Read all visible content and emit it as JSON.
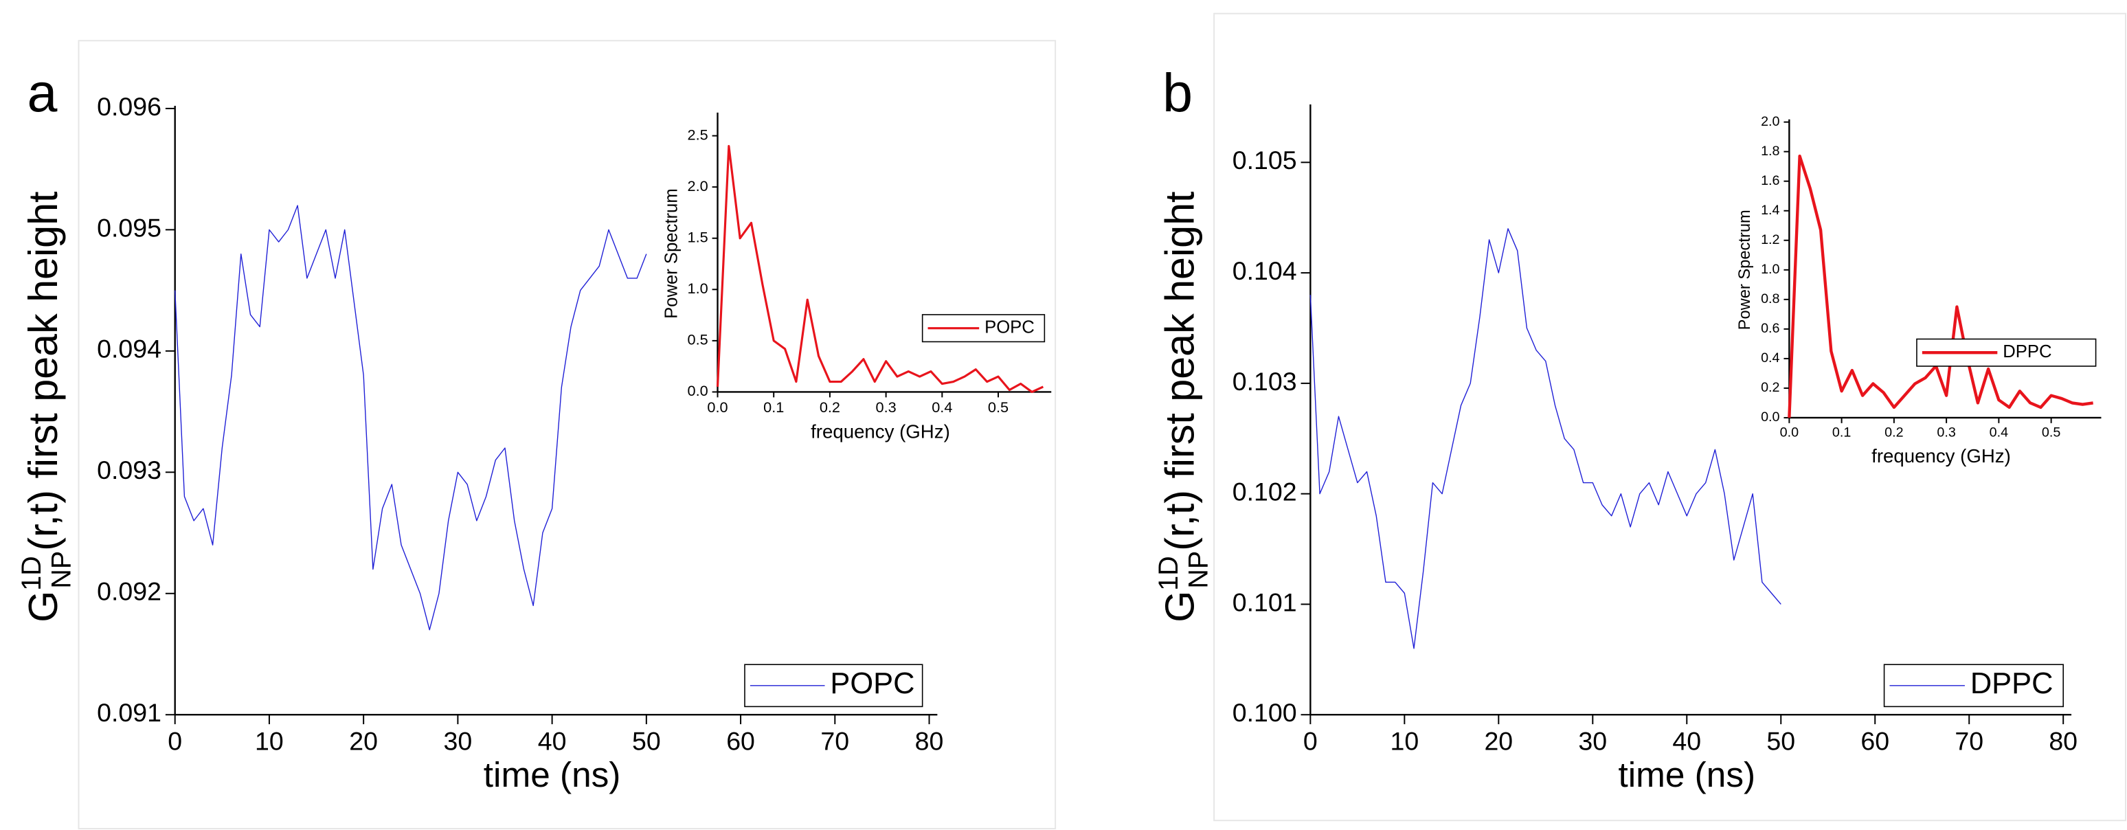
{
  "chart_data": [
    {
      "type": "line",
      "panel_label": "a",
      "x_label": "time (ns)",
      "y_label": {
        "base": "G",
        "sup": "1D",
        "sub": "NP",
        "rest": "(r,t) first peak height"
      },
      "x": [
        0,
        1,
        2,
        3,
        4,
        5,
        6,
        7,
        8,
        9,
        10,
        11,
        12,
        13,
        14,
        15,
        16,
        17,
        18,
        19,
        20,
        21,
        22,
        23,
        24,
        25,
        26,
        27,
        28,
        29,
        30,
        31,
        32,
        33,
        34,
        35,
        36,
        37,
        38,
        39,
        40,
        41,
        42,
        43,
        44,
        45,
        46,
        47,
        48,
        49,
        50
      ],
      "series": [
        {
          "name": "POPC",
          "color": "#1f1fd6",
          "values": [
            0.0945,
            0.0928,
            0.0926,
            0.0927,
            0.0924,
            0.0932,
            0.0938,
            0.0948,
            0.0943,
            0.0942,
            0.095,
            0.0949,
            0.095,
            0.0952,
            0.0946,
            0.0948,
            0.095,
            0.0946,
            0.095,
            0.0944,
            0.0938,
            0.0922,
            0.0927,
            0.0929,
            0.0924,
            0.0922,
            0.092,
            0.0917,
            0.092,
            0.0926,
            0.093,
            0.0929,
            0.0926,
            0.0928,
            0.0931,
            0.0932,
            0.0926,
            0.0922,
            0.0919,
            0.0925,
            0.0927,
            0.0937,
            0.0942,
            0.0945,
            0.0946,
            0.0947,
            0.095,
            0.0948,
            0.0946,
            0.0946,
            0.0948
          ]
        }
      ],
      "xlim": [
        0,
        80
      ],
      "ylim": [
        0.091,
        0.096
      ],
      "xticks": [
        0,
        10,
        20,
        30,
        40,
        50,
        60,
        70,
        80
      ],
      "yticks": [
        0.091,
        0.092,
        0.093,
        0.094,
        0.095,
        0.096
      ],
      "legend": "lower right"
    },
    {
      "type": "line",
      "x_label": "frequency (GHz)",
      "y_label": "Power Spectrum",
      "x": [
        0,
        0.02,
        0.04,
        0.06,
        0.08,
        0.1,
        0.12,
        0.14,
        0.16,
        0.18,
        0.2,
        0.22,
        0.24,
        0.26,
        0.28,
        0.3,
        0.32,
        0.34,
        0.36,
        0.38,
        0.4,
        0.42,
        0.44,
        0.46,
        0.48,
        0.5,
        0.52,
        0.54,
        0.56,
        0.58
      ],
      "series": [
        {
          "name": "POPC",
          "color": "#e8141c",
          "values": [
            0.05,
            2.4,
            1.5,
            1.65,
            1.05,
            0.5,
            0.42,
            0.1,
            0.9,
            0.35,
            0.1,
            0.1,
            0.2,
            0.32,
            0.1,
            0.3,
            0.15,
            0.2,
            0.15,
            0.2,
            0.08,
            0.1,
            0.15,
            0.22,
            0.1,
            0.15,
            0.02,
            0.08,
            0.0,
            0.05
          ]
        }
      ],
      "xlim": [
        0,
        0.58
      ],
      "ylim": [
        0,
        2.7
      ],
      "xticks": [
        {
          "value": 0,
          "label": "0.0"
        },
        0.1,
        0.2,
        0.3,
        0.4,
        0.5
      ],
      "yticks": [
        {
          "value": 0,
          "label": "0.0"
        },
        0.5,
        {
          "value": 1,
          "label": "1.0"
        },
        1.5,
        {
          "value": 2,
          "label": "2.0"
        },
        2.5
      ],
      "legend": "right"
    },
    {
      "type": "line",
      "panel_label": "b",
      "x_label": "time (ns)",
      "y_label": {
        "base": "G",
        "sup": "1D",
        "sub": "NP",
        "rest": "(r,t) first peak height"
      },
      "x": [
        0,
        1,
        2,
        3,
        4,
        5,
        6,
        7,
        8,
        9,
        10,
        11,
        12,
        13,
        14,
        15,
        16,
        17,
        18,
        19,
        20,
        21,
        22,
        23,
        24,
        25,
        26,
        27,
        28,
        29,
        30,
        31,
        32,
        33,
        34,
        35,
        36,
        37,
        38,
        39,
        40,
        41,
        42,
        43,
        44,
        45,
        46,
        47,
        48,
        49,
        50
      ],
      "series": [
        {
          "name": "DPPC",
          "color": "#1f1fd6",
          "values": [
            0.1038,
            0.102,
            0.1022,
            0.1027,
            0.1024,
            0.1021,
            0.1022,
            0.1018,
            0.1012,
            0.1012,
            0.1011,
            0.1006,
            0.1013,
            0.1021,
            0.102,
            0.1024,
            0.1028,
            0.103,
            0.1036,
            0.1043,
            0.104,
            0.1044,
            0.1042,
            0.1035,
            0.1033,
            0.1032,
            0.1028,
            0.1025,
            0.1024,
            0.1021,
            0.1021,
            0.1019,
            0.1018,
            0.102,
            0.1017,
            0.102,
            0.1021,
            0.1019,
            0.1022,
            0.102,
            0.1018,
            0.102,
            0.1021,
            0.1024,
            0.102,
            0.1014,
            0.1017,
            0.102,
            0.1012,
            0.1011,
            0.101
          ]
        }
      ],
      "xlim": [
        0,
        80
      ],
      "ylim": [
        0.1,
        0.1055
      ],
      "xticks": [
        0,
        10,
        20,
        30,
        40,
        50,
        60,
        70,
        80
      ],
      "yticks": [
        {
          "value": 0.1,
          "label": "0.100"
        },
        0.101,
        0.102,
        0.103,
        0.104,
        0.105
      ],
      "legend": "lower right"
    },
    {
      "type": "line",
      "x_label": "frequency (GHz)",
      "y_label": "Power Spectrum",
      "x": [
        0,
        0.02,
        0.04,
        0.06,
        0.08,
        0.1,
        0.12,
        0.14,
        0.16,
        0.18,
        0.2,
        0.22,
        0.24,
        0.26,
        0.28,
        0.3,
        0.32,
        0.34,
        0.36,
        0.38,
        0.4,
        0.42,
        0.44,
        0.46,
        0.48,
        0.5,
        0.52,
        0.54,
        0.56,
        0.58
      ],
      "series": [
        {
          "name": "DPPC",
          "color": "#e8141c",
          "values": [
            0,
            1.77,
            1.55,
            1.27,
            0.45,
            0.18,
            0.32,
            0.15,
            0.23,
            0.17,
            0.07,
            0.15,
            0.23,
            0.27,
            0.35,
            0.15,
            0.75,
            0.4,
            0.1,
            0.33,
            0.12,
            0.07,
            0.18,
            0.1,
            0.07,
            0.15,
            0.13,
            0.1,
            0.09,
            0.1
          ]
        }
      ],
      "xlim": [
        0,
        0.58
      ],
      "ylim": [
        0,
        2.0
      ],
      "xticks": [
        {
          "value": 0,
          "label": "0.0"
        },
        0.1,
        0.2,
        0.3,
        0.4,
        0.5
      ],
      "yticks": [
        {
          "value": 0,
          "label": "0.0"
        },
        0.2,
        0.4,
        0.6,
        0.8,
        {
          "value": 1,
          "label": "1.0"
        },
        1.2,
        1.4,
        1.6,
        1.8,
        {
          "value": 2,
          "label": "2.0"
        }
      ],
      "legend": "right"
    }
  ]
}
